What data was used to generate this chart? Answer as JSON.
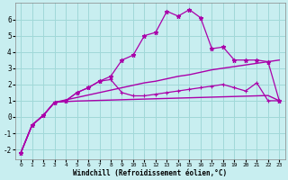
{
  "background_color": "#c8eef0",
  "grid_color": "#a0d8d8",
  "line_color": "#aa00aa",
  "xlabel": "Windchill (Refroidissement éolien,°C)",
  "xlim": [
    -0.5,
    23.5
  ],
  "ylim": [
    -2.6,
    7.0
  ],
  "yticks": [
    -2,
    -1,
    0,
    1,
    2,
    3,
    4,
    5,
    6
  ],
  "xticks": [
    0,
    1,
    2,
    3,
    4,
    5,
    6,
    7,
    8,
    9,
    10,
    11,
    12,
    13,
    14,
    15,
    16,
    17,
    18,
    19,
    20,
    21,
    22,
    23
  ],
  "series": [
    {
      "x": [
        0,
        1,
        2,
        3,
        4,
        5,
        6,
        7,
        8,
        9,
        10,
        11,
        12,
        13,
        14,
        15,
        16,
        17,
        18,
        19,
        20,
        21,
        22,
        23
      ],
      "y": [
        -2.2,
        -0.5,
        0.1,
        0.9,
        1.05,
        1.2,
        1.35,
        1.5,
        1.65,
        1.8,
        1.95,
        2.1,
        2.2,
        2.35,
        2.5,
        2.6,
        2.75,
        2.9,
        3.0,
        3.1,
        3.2,
        3.3,
        3.4,
        3.5
      ],
      "marker": null,
      "linewidth": 1.0
    },
    {
      "x": [
        0,
        1,
        2,
        3,
        4,
        5,
        6,
        7,
        8,
        9,
        10,
        11,
        12,
        13,
        14,
        15,
        16,
        17,
        18,
        19,
        20,
        21,
        22,
        23
      ],
      "y": [
        -2.2,
        -0.5,
        0.1,
        0.9,
        0.95,
        0.98,
        1.0,
        1.02,
        1.04,
        1.06,
        1.08,
        1.1,
        1.12,
        1.14,
        1.16,
        1.18,
        1.2,
        1.22,
        1.24,
        1.26,
        1.28,
        1.3,
        1.32,
        1.0
      ],
      "marker": null,
      "linewidth": 1.0
    },
    {
      "x": [
        0,
        1,
        2,
        3,
        4,
        5,
        6,
        7,
        8,
        9,
        10,
        11,
        12,
        13,
        14,
        15,
        16,
        17,
        18,
        19,
        20,
        21,
        22,
        23
      ],
      "y": [
        -2.2,
        -0.5,
        0.1,
        0.9,
        1.0,
        1.5,
        1.8,
        2.2,
        2.5,
        3.5,
        3.8,
        5.0,
        5.2,
        6.5,
        6.2,
        6.6,
        6.1,
        4.2,
        4.3,
        3.5,
        3.5,
        3.5,
        3.4,
        1.0
      ],
      "marker": "*",
      "linewidth": 0.9
    },
    {
      "x": [
        0,
        1,
        2,
        3,
        4,
        5,
        6,
        7,
        8,
        9,
        10,
        11,
        12,
        13,
        14,
        15,
        16,
        17,
        18,
        19,
        20,
        21,
        22,
        23
      ],
      "y": [
        -2.2,
        -0.5,
        0.1,
        0.9,
        1.0,
        1.5,
        1.8,
        2.2,
        2.3,
        1.5,
        1.3,
        1.3,
        1.4,
        1.5,
        1.6,
        1.7,
        1.8,
        1.9,
        2.0,
        1.8,
        1.6,
        2.1,
        1.0,
        1.0
      ],
      "marker": "+",
      "linewidth": 0.9
    }
  ]
}
